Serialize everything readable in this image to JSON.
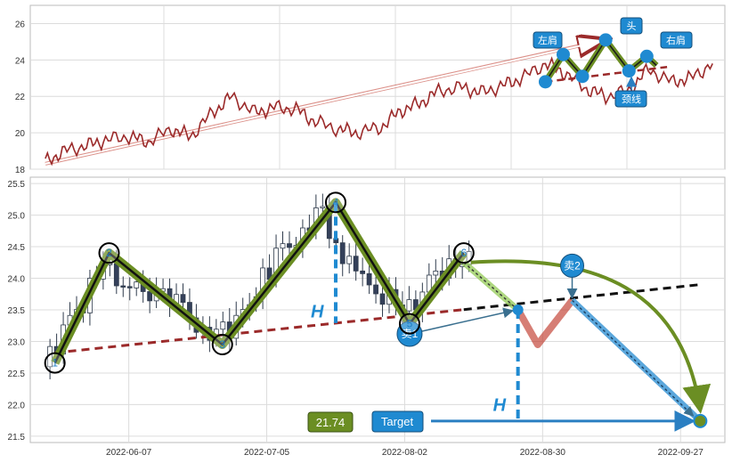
{
  "chart_data": [
    {
      "type": "line",
      "panel": "top",
      "title": "",
      "xlabel": "",
      "ylabel": "",
      "ylim": [
        18,
        27
      ],
      "yticks": [
        "18",
        "20",
        "22",
        "24",
        "26"
      ],
      "grid": true,
      "series": [
        {
          "color": "#9b2a2a",
          "x": [
            "2021-06-01",
            "2021-06-15",
            "2021-07-01",
            "2021-07-15",
            "2021-08-01",
            "2021-08-15",
            "2021-09-01",
            "2021-09-15",
            "2021-10-01",
            "2021-10-15",
            "2021-11-01",
            "2021-11-15",
            "2021-12-01",
            "2021-12-15",
            "2022-01-01",
            "2022-01-15",
            "2022-02-01",
            "2022-02-15",
            "2022-03-01",
            "2022-03-15",
            "2022-04-01",
            "2022-04-15",
            "2022-05-01",
            "2022-05-15",
            "2022-06-01",
            "2022-06-15",
            "2022-07-01",
            "2022-07-15",
            "2022-08-01",
            "2022-08-15",
            "2022-09-01",
            "2022-09-15",
            "2022-10-01"
          ],
          "values": [
            18.4,
            19.0,
            19.3,
            19.6,
            19.8,
            19.5,
            20.2,
            19.8,
            21.1,
            22.0,
            21.1,
            21.4,
            21.3,
            20.6,
            20.2,
            20.0,
            20.3,
            21.2,
            21.6,
            22.3,
            22.5,
            22.2,
            22.6,
            23.0,
            23.8,
            23.3,
            22.4,
            22.0,
            22.3,
            23.5,
            22.8,
            23.0,
            23.8
          ]
        }
      ],
      "pattern_points": [
        {
          "x": "2022-06-01",
          "y": 22.8
        },
        {
          "x": "2022-06-14",
          "y": 24.3
        },
        {
          "x": "2022-06-28",
          "y": 23.1
        },
        {
          "x": "2022-07-15",
          "y": 25.1
        },
        {
          "x": "2022-08-01",
          "y": 23.4
        },
        {
          "x": "2022-08-14",
          "y": 24.2
        },
        {
          "x": "2022-08-21",
          "y": 23.7
        }
      ],
      "trendline": {
        "from": {
          "x": "2021-06-01",
          "y": 18.3
        },
        "to": {
          "x": "2022-07-15",
          "y": 25.1
        }
      },
      "neckline": {
        "from": {
          "x": "2022-06-01",
          "y": 22.8
        },
        "to": {
          "x": "2022-08-21",
          "y": 23.6
        }
      },
      "annotations": [
        {
          "key": "left_shoulder",
          "text": "左肩"
        },
        {
          "key": "head",
          "text": "头"
        },
        {
          "key": "right_shoulder",
          "text": "右肩"
        },
        {
          "key": "neckline",
          "text": "颈线"
        }
      ]
    },
    {
      "type": "candlestick",
      "panel": "bottom",
      "title": "",
      "xlabel": "",
      "ylabel": "",
      "ylim": [
        21.4,
        25.6
      ],
      "yticks": [
        "21.5",
        "22.0",
        "22.5",
        "23.0",
        "23.5",
        "24.0",
        "24.5",
        "25.0",
        "25.5"
      ],
      "xticks": [
        "2022-06-07",
        "2022-07-05",
        "2022-08-02",
        "2022-08-30",
        "2022-09-27"
      ],
      "x_range": [
        "2022-05-18",
        "2022-10-06"
      ],
      "grid": true,
      "close_values": [
        22.8,
        23.3,
        23.6,
        23.9,
        24.2,
        24.0,
        23.8,
        23.7,
        23.9,
        23.6,
        23.5,
        23.2,
        23.1,
        23.2,
        23.4,
        23.7,
        24.1,
        24.4,
        24.6,
        24.8,
        25.0,
        24.7,
        24.3,
        24.0,
        23.9,
        23.7,
        23.5,
        23.6,
        23.9,
        24.1,
        24.2,
        24.3
      ],
      "pattern_points": [
        {
          "label": "1",
          "x": "2022-05-23",
          "y": 22.66
        },
        {
          "label": "2",
          "x": "2022-06-03",
          "y": 24.4
        },
        {
          "label": "3",
          "x": "2022-06-26",
          "y": 22.95
        },
        {
          "label": "4",
          "x": "2022-07-19",
          "y": 25.2
        },
        {
          "label": "5",
          "x": "2022-08-03",
          "y": 23.28
        },
        {
          "label": "6",
          "x": "2022-08-14",
          "y": 24.4
        }
      ],
      "neckline": {
        "from": {
          "x": "2022-05-23",
          "y": 22.82
        },
        "to": {
          "x": "2022-10-01",
          "y": 23.9
        }
      },
      "sell_points": [
        {
          "label": "卖1",
          "x": "2022-08-03",
          "y": 23.12
        },
        {
          "label": "卖2",
          "x": "2022-09-05",
          "y": 24.2
        }
      ],
      "projection": [
        {
          "x": "2022-08-14",
          "y": 24.25
        },
        {
          "x": "2022-08-25",
          "y": 23.5
        },
        {
          "x": "2022-08-29",
          "y": 22.95
        },
        {
          "x": "2022-09-05",
          "y": 23.65
        },
        {
          "x": "2022-10-01",
          "y": 21.74
        }
      ],
      "height_label": "H",
      "target_label": "Target",
      "target_value": "21.74"
    }
  ]
}
